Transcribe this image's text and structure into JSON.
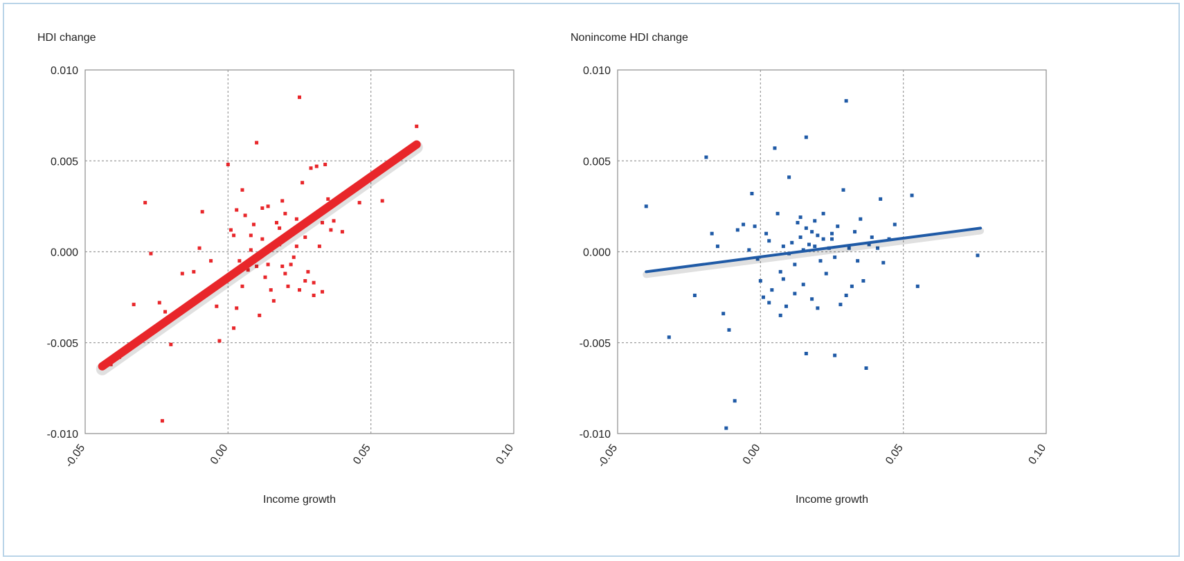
{
  "figure": {
    "accent_frame_color": "#b9d4e8"
  },
  "chart_data": [
    {
      "type": "scatter",
      "ylabel": "HDI change",
      "xlabel": "Income growth",
      "xlim": [
        -0.05,
        0.1
      ],
      "ylim": [
        -0.01,
        0.01
      ],
      "xticks": [
        "-0.05",
        "0.00",
        "0.05",
        "0.10"
      ],
      "yticks": [
        "0.010",
        "0.005",
        "0.000",
        "-0.005",
        "-0.010"
      ],
      "grid": true,
      "color": "#e8262a",
      "fit_line": {
        "x": [
          -0.044,
          0.066
        ],
        "y": [
          -0.0063,
          0.0059
        ]
      },
      "points": [
        [
          -0.044,
          -0.0064
        ],
        [
          -0.041,
          -0.0062
        ],
        [
          -0.038,
          -0.0058
        ],
        [
          -0.033,
          -0.0029
        ],
        [
          -0.029,
          0.0027
        ],
        [
          -0.027,
          -0.0001
        ],
        [
          -0.024,
          -0.0028
        ],
        [
          -0.022,
          -0.0033
        ],
        [
          -0.02,
          -0.0051
        ],
        [
          -0.023,
          -0.0093
        ],
        [
          -0.016,
          -0.0012
        ],
        [
          -0.012,
          -0.0011
        ],
        [
          -0.01,
          0.0002
        ],
        [
          -0.009,
          0.0022
        ],
        [
          -0.006,
          -0.0005
        ],
        [
          -0.004,
          -0.003
        ],
        [
          -0.003,
          -0.0049
        ],
        [
          -0.002,
          -0.0016
        ],
        [
          0.0,
          0.0048
        ],
        [
          0.001,
          0.0012
        ],
        [
          0.002,
          -0.0042
        ],
        [
          0.003,
          -0.0031
        ],
        [
          0.004,
          -0.0005
        ],
        [
          0.005,
          0.0034
        ],
        [
          0.006,
          0.002
        ],
        [
          0.007,
          -0.001
        ],
        [
          0.008,
          0.0001
        ],
        [
          0.009,
          0.0015
        ],
        [
          0.01,
          0.006
        ],
        [
          0.011,
          -0.0035
        ],
        [
          0.012,
          0.0007
        ],
        [
          0.013,
          -0.0014
        ],
        [
          0.014,
          0.0025
        ],
        [
          0.015,
          0.0001
        ],
        [
          0.016,
          -0.0027
        ],
        [
          0.017,
          0.0016
        ],
        [
          0.018,
          0.0004
        ],
        [
          0.019,
          -0.0008
        ],
        [
          0.02,
          0.0021
        ],
        [
          0.021,
          -0.0019
        ],
        [
          0.022,
          0.001
        ],
        [
          0.023,
          -0.0003
        ],
        [
          0.024,
          0.0018
        ],
        [
          0.025,
          -0.0021
        ],
        [
          0.025,
          0.0085
        ],
        [
          0.026,
          0.0038
        ],
        [
          0.027,
          0.0008
        ],
        [
          0.028,
          -0.0011
        ],
        [
          0.029,
          0.0046
        ],
        [
          0.03,
          -0.0017
        ],
        [
          0.031,
          0.0047
        ],
        [
          0.032,
          0.0003
        ],
        [
          0.033,
          0.0016
        ],
        [
          0.034,
          0.0048
        ],
        [
          0.035,
          0.0029
        ],
        [
          0.036,
          0.0012
        ],
        [
          0.003,
          0.0023
        ],
        [
          0.008,
          0.0009
        ],
        [
          0.012,
          0.0024
        ],
        [
          0.018,
          0.0013
        ],
        [
          0.022,
          -0.0007
        ],
        [
          0.027,
          -0.0016
        ],
        [
          0.03,
          -0.0024
        ],
        [
          0.033,
          -0.0022
        ],
        [
          0.015,
          -0.0021
        ],
        [
          0.01,
          -0.0008
        ],
        [
          0.005,
          -0.0019
        ],
        [
          0.002,
          0.0009
        ],
        [
          0.019,
          0.0028
        ],
        [
          0.024,
          0.0003
        ],
        [
          0.029,
          0.0018
        ],
        [
          0.037,
          0.0017
        ],
        [
          0.04,
          0.0011
        ],
        [
          0.046,
          0.0027
        ],
        [
          0.048,
          0.0038
        ],
        [
          0.054,
          0.0028
        ],
        [
          0.066,
          0.0069
        ],
        [
          0.002,
          -0.0013
        ],
        [
          0.014,
          -0.0007
        ],
        [
          0.02,
          -0.0012
        ]
      ]
    },
    {
      "type": "scatter",
      "ylabel": "Nonincome HDI change",
      "xlabel": "Income growth",
      "xlim": [
        -0.05,
        0.1
      ],
      "ylim": [
        -0.01,
        0.01
      ],
      "xticks": [
        "-0.05",
        "0.00",
        "0.05",
        "0.10"
      ],
      "yticks": [
        "0.010",
        "0.005",
        "0.000",
        "-0.005",
        "-0.010"
      ],
      "grid": true,
      "color": "#1f5aa6",
      "fit_line": {
        "x": [
          -0.04,
          0.077
        ],
        "y": [
          -0.0011,
          0.0013
        ]
      },
      "points": [
        [
          -0.04,
          0.0025
        ],
        [
          -0.032,
          -0.0047
        ],
        [
          -0.023,
          -0.0024
        ],
        [
          -0.019,
          0.0052
        ],
        [
          -0.017,
          0.001
        ],
        [
          -0.015,
          0.0003
        ],
        [
          -0.013,
          -0.0034
        ],
        [
          -0.011,
          -0.0043
        ],
        [
          -0.009,
          -0.0082
        ],
        [
          -0.012,
          -0.0097
        ],
        [
          -0.008,
          0.0012
        ],
        [
          -0.006,
          0.0015
        ],
        [
          -0.004,
          0.0001
        ],
        [
          -0.003,
          0.0032
        ],
        [
          -0.002,
          0.0014
        ],
        [
          -0.001,
          -0.0004
        ],
        [
          0.0,
          -0.0016
        ],
        [
          0.001,
          -0.0025
        ],
        [
          0.002,
          0.001
        ],
        [
          0.003,
          0.0006
        ],
        [
          0.004,
          -0.0021
        ],
        [
          0.005,
          0.0057
        ],
        [
          0.006,
          0.0021
        ],
        [
          0.007,
          -0.0011
        ],
        [
          0.008,
          0.0003
        ],
        [
          0.009,
          -0.003
        ],
        [
          0.01,
          0.0041
        ],
        [
          0.011,
          0.0005
        ],
        [
          0.012,
          -0.0007
        ],
        [
          0.013,
          0.0016
        ],
        [
          0.014,
          0.0008
        ],
        [
          0.015,
          -0.0018
        ],
        [
          0.016,
          0.0013
        ],
        [
          0.016,
          0.0063
        ],
        [
          0.017,
          0.0004
        ],
        [
          0.018,
          -0.0026
        ],
        [
          0.019,
          0.0017
        ],
        [
          0.02,
          0.0009
        ],
        [
          0.021,
          -0.0005
        ],
        [
          0.022,
          0.0021
        ],
        [
          0.023,
          -0.0012
        ],
        [
          0.024,
          0.0002
        ],
        [
          0.025,
          0.0007
        ],
        [
          0.026,
          -0.0003
        ],
        [
          0.027,
          0.0014
        ],
        [
          0.028,
          -0.0029
        ],
        [
          0.029,
          0.0034
        ],
        [
          0.03,
          0.0083
        ],
        [
          0.031,
          0.0002
        ],
        [
          0.032,
          -0.0019
        ],
        [
          0.033,
          0.0011
        ],
        [
          0.034,
          -0.0005
        ],
        [
          0.035,
          0.0018
        ],
        [
          0.036,
          -0.0016
        ],
        [
          0.037,
          -0.0064
        ],
        [
          0.038,
          0.0004
        ],
        [
          0.039,
          0.0008
        ],
        [
          0.041,
          0.0002
        ],
        [
          0.043,
          -0.0006
        ],
        [
          0.045,
          0.0007
        ],
        [
          0.047,
          0.0015
        ],
        [
          0.042,
          0.0029
        ],
        [
          0.053,
          0.0031
        ],
        [
          0.055,
          -0.0019
        ],
        [
          0.076,
          -0.0002
        ],
        [
          0.016,
          -0.0056
        ],
        [
          0.026,
          -0.0057
        ],
        [
          0.007,
          -0.0035
        ],
        [
          0.003,
          -0.0028
        ],
        [
          0.012,
          -0.0023
        ],
        [
          0.02,
          -0.0031
        ],
        [
          0.018,
          0.0011
        ],
        [
          0.022,
          0.0007
        ],
        [
          0.014,
          0.0019
        ],
        [
          0.01,
          -0.0001
        ],
        [
          0.025,
          0.001
        ],
        [
          0.019,
          0.0003
        ],
        [
          0.015,
          0.0001
        ],
        [
          0.008,
          -0.0015
        ],
        [
          0.03,
          -0.0024
        ]
      ]
    }
  ]
}
